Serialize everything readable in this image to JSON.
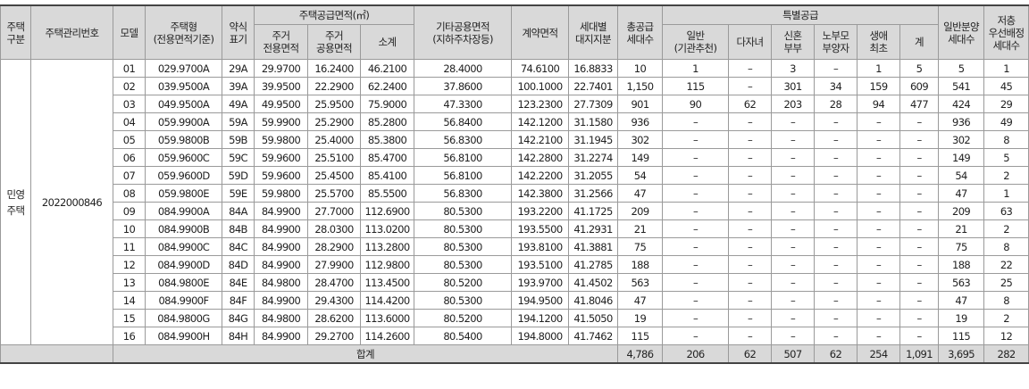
{
  "headers": {
    "housing_type": "주택\n구분",
    "mgmt_no": "주택관리번호",
    "model": "모델",
    "unit_type": "주택형\n(전용면적기준)",
    "abbrev": "약식\n표기",
    "supply_area": "주택공급면적(㎡)",
    "residential_exclusive": "주거\n전용면적",
    "residential_common": "주거\n공용면적",
    "subtotal": "소계",
    "other_common": "기타공용면적\n(지하주차장등)",
    "contract_area": "계약면적",
    "land_share": "세대별\n대지지분",
    "total_supply": "총공급\n세대수",
    "special_supply": "특별공급",
    "sp_general": "일반\n(기관추천)",
    "sp_multichild": "다자녀",
    "sp_newlywed": "신혼\n부부",
    "sp_elderly": "노부모\n부양자",
    "sp_firsttime": "생애\n최초",
    "sp_total": "계",
    "general_supply": "일반분양\n세대수",
    "low_priority": "저층\n우선배정\n세대수"
  },
  "housing_type_value": "민영\n주택",
  "mgmt_no_value": "2022000846",
  "rows": [
    {
      "model": "01",
      "type": "029.9700A",
      "abbr": "29A",
      "excl": "29.9700",
      "comm": "16.2400",
      "sub": "46.2100",
      "other": "28.4000",
      "contract": "74.6100",
      "land": "16.8833",
      "total": "10",
      "sg": "1",
      "mc": "–",
      "nw": "3",
      "el": "–",
      "ft": "1",
      "st": "5",
      "gen": "5",
      "low": "1"
    },
    {
      "model": "02",
      "type": "039.9500A",
      "abbr": "39A",
      "excl": "39.9500",
      "comm": "22.2900",
      "sub": "62.2400",
      "other": "37.8600",
      "contract": "100.1000",
      "land": "22.7401",
      "total": "1,150",
      "sg": "115",
      "mc": "–",
      "nw": "301",
      "el": "34",
      "ft": "159",
      "st": "609",
      "gen": "541",
      "low": "45"
    },
    {
      "model": "03",
      "type": "049.9500A",
      "abbr": "49A",
      "excl": "49.9500",
      "comm": "25.9500",
      "sub": "75.9000",
      "other": "47.3300",
      "contract": "123.2300",
      "land": "27.7309",
      "total": "901",
      "sg": "90",
      "mc": "62",
      "nw": "203",
      "el": "28",
      "ft": "94",
      "st": "477",
      "gen": "424",
      "low": "29"
    },
    {
      "model": "04",
      "type": "059.9900A",
      "abbr": "59A",
      "excl": "59.9900",
      "comm": "25.2900",
      "sub": "85.2800",
      "other": "56.8400",
      "contract": "142.1200",
      "land": "31.1580",
      "total": "936",
      "sg": "–",
      "mc": "–",
      "nw": "–",
      "el": "–",
      "ft": "–",
      "st": "–",
      "gen": "936",
      "low": "49"
    },
    {
      "model": "05",
      "type": "059.9800B",
      "abbr": "59B",
      "excl": "59.9800",
      "comm": "25.4000",
      "sub": "85.3800",
      "other": "56.8300",
      "contract": "142.2100",
      "land": "31.1945",
      "total": "302",
      "sg": "–",
      "mc": "–",
      "nw": "–",
      "el": "–",
      "ft": "–",
      "st": "–",
      "gen": "302",
      "low": "8"
    },
    {
      "model": "06",
      "type": "059.9600C",
      "abbr": "59C",
      "excl": "59.9600",
      "comm": "25.5100",
      "sub": "85.4700",
      "other": "56.8100",
      "contract": "142.2800",
      "land": "31.2274",
      "total": "149",
      "sg": "–",
      "mc": "–",
      "nw": "–",
      "el": "–",
      "ft": "–",
      "st": "–",
      "gen": "149",
      "low": "5"
    },
    {
      "model": "07",
      "type": "059.9600D",
      "abbr": "59D",
      "excl": "59.9600",
      "comm": "25.4500",
      "sub": "85.4100",
      "other": "56.8100",
      "contract": "142.2200",
      "land": "31.2055",
      "total": "54",
      "sg": "–",
      "mc": "–",
      "nw": "–",
      "el": "–",
      "ft": "–",
      "st": "–",
      "gen": "54",
      "low": "2"
    },
    {
      "model": "08",
      "type": "059.9800E",
      "abbr": "59E",
      "excl": "59.9800",
      "comm": "25.5700",
      "sub": "85.5500",
      "other": "56.8300",
      "contract": "142.3800",
      "land": "31.2566",
      "total": "47",
      "sg": "–",
      "mc": "–",
      "nw": "–",
      "el": "–",
      "ft": "–",
      "st": "–",
      "gen": "47",
      "low": "1"
    },
    {
      "model": "09",
      "type": "084.9900A",
      "abbr": "84A",
      "excl": "84.9900",
      "comm": "27.7000",
      "sub": "112.6900",
      "other": "80.5300",
      "contract": "193.2200",
      "land": "41.1725",
      "total": "209",
      "sg": "–",
      "mc": "–",
      "nw": "–",
      "el": "–",
      "ft": "–",
      "st": "–",
      "gen": "209",
      "low": "63"
    },
    {
      "model": "10",
      "type": "084.9900B",
      "abbr": "84B",
      "excl": "84.9900",
      "comm": "28.0300",
      "sub": "113.0200",
      "other": "80.5300",
      "contract": "193.5500",
      "land": "41.2931",
      "total": "21",
      "sg": "–",
      "mc": "–",
      "nw": "–",
      "el": "–",
      "ft": "–",
      "st": "–",
      "gen": "21",
      "low": "2"
    },
    {
      "model": "11",
      "type": "084.9900C",
      "abbr": "84C",
      "excl": "84.9900",
      "comm": "28.2900",
      "sub": "113.2800",
      "other": "80.5300",
      "contract": "193.8100",
      "land": "41.3881",
      "total": "75",
      "sg": "–",
      "mc": "–",
      "nw": "–",
      "el": "–",
      "ft": "–",
      "st": "–",
      "gen": "75",
      "low": "8"
    },
    {
      "model": "12",
      "type": "084.9900D",
      "abbr": "84D",
      "excl": "84.9900",
      "comm": "27.9900",
      "sub": "112.9800",
      "other": "80.5300",
      "contract": "193.5100",
      "land": "41.2785",
      "total": "188",
      "sg": "–",
      "mc": "–",
      "nw": "–",
      "el": "–",
      "ft": "–",
      "st": "–",
      "gen": "188",
      "low": "22"
    },
    {
      "model": "13",
      "type": "084.9800E",
      "abbr": "84E",
      "excl": "84.9800",
      "comm": "28.4700",
      "sub": "113.4500",
      "other": "80.5200",
      "contract": "193.9700",
      "land": "41.4502",
      "total": "563",
      "sg": "–",
      "mc": "–",
      "nw": "–",
      "el": "–",
      "ft": "–",
      "st": "–",
      "gen": "563",
      "low": "25"
    },
    {
      "model": "14",
      "type": "084.9900F",
      "abbr": "84F",
      "excl": "84.9900",
      "comm": "29.4300",
      "sub": "114.4200",
      "other": "80.5300",
      "contract": "194.9500",
      "land": "41.8046",
      "total": "47",
      "sg": "–",
      "mc": "–",
      "nw": "–",
      "el": "–",
      "ft": "–",
      "st": "–",
      "gen": "47",
      "low": "8"
    },
    {
      "model": "15",
      "type": "084.9800G",
      "abbr": "84G",
      "excl": "84.9800",
      "comm": "28.6200",
      "sub": "113.6000",
      "other": "80.5200",
      "contract": "194.1200",
      "land": "41.5050",
      "total": "19",
      "sg": "–",
      "mc": "–",
      "nw": "–",
      "el": "–",
      "ft": "–",
      "st": "–",
      "gen": "19",
      "low": "2"
    },
    {
      "model": "16",
      "type": "084.9900H",
      "abbr": "84H",
      "excl": "84.9900",
      "comm": "29.2700",
      "sub": "114.2600",
      "other": "80.5400",
      "contract": "194.8000",
      "land": "41.7462",
      "total": "115",
      "sg": "–",
      "mc": "–",
      "nw": "–",
      "el": "–",
      "ft": "–",
      "st": "–",
      "gen": "115",
      "low": "12"
    }
  ],
  "totals": {
    "label": "합계",
    "total": "4,786",
    "sg": "206",
    "mc": "62",
    "nw": "507",
    "el": "62",
    "ft": "254",
    "st": "1,091",
    "gen": "3,695",
    "low": "282"
  }
}
